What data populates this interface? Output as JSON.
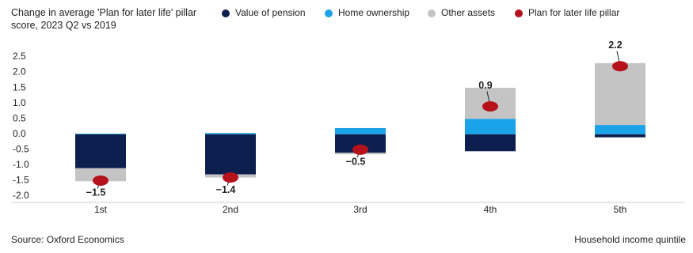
{
  "chart_data": {
    "type": "stacked-bar-dot",
    "title": "Change in average 'Plan for later life' pillar score, 2023 Q2 vs 2019",
    "source": "Source: Oxford Economics",
    "x_label": "Household income quintile",
    "categories": [
      "1st",
      "2nd",
      "3rd",
      "4th",
      "5th"
    ],
    "series": [
      {
        "name": "Value of pension",
        "color": "#0d1f4e",
        "values": [
          -1.1,
          -1.3,
          -0.6,
          -0.55,
          -0.1
        ]
      },
      {
        "name": "Home ownership",
        "color": "#1aa3e8",
        "values": [
          0.02,
          0.04,
          0.2,
          0.5,
          0.3
        ]
      },
      {
        "name": "Other assets",
        "color": "#c4c4c4",
        "values": [
          -0.42,
          -0.1,
          -0.05,
          1.0,
          2.0
        ]
      },
      {
        "name": "Plan for later life pillar",
        "color": "#b5121b",
        "kind": "dot",
        "values": [
          -1.5,
          -1.4,
          -0.5,
          0.9,
          2.2
        ],
        "value_labels": [
          "−1.5",
          "−1.4",
          "−0.5",
          "0.9",
          "2.2"
        ]
      }
    ],
    "ylim": [
      -2.0,
      2.5
    ],
    "yticks": [
      {
        "value": -2.0,
        "label": "-2.0"
      },
      -1.5,
      {
        "value": -1.0,
        "label": "-1.0"
      },
      -0.5,
      {
        "value": 0.0,
        "label": "0.0"
      },
      0.5,
      {
        "value": 1.0,
        "label": "1.0"
      },
      1.5,
      {
        "value": 2.0,
        "label": "2.0"
      },
      2.5
    ]
  }
}
